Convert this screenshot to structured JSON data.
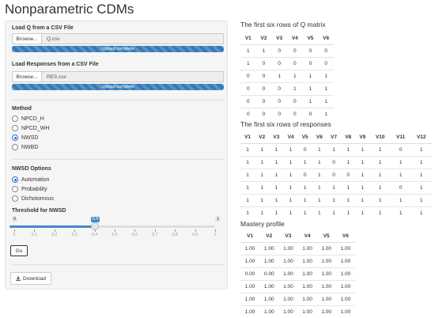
{
  "page": {
    "title": "Nonparametric CDMs"
  },
  "sidebar": {
    "q_upload": {
      "label": "Load Q from a CSV File",
      "browse": "Browse...",
      "filename": "Q.csv",
      "status": "Upload complete",
      "progress": 1.0
    },
    "res_upload": {
      "label": "Load Responses from a CSV File",
      "browse": "Browse...",
      "filename": "RES.csv",
      "status": "Upload complete",
      "progress": 1.0
    },
    "method": {
      "label": "Method",
      "options": [
        "NPCD_H",
        "NPCD_WH",
        "NWSD",
        "NWBD"
      ],
      "selected": "NWSD"
    },
    "nwsd_options": {
      "label": "NWSD Options",
      "options": [
        "Automation",
        "Probability",
        "Dichotomous"
      ],
      "selected": "Automation"
    },
    "threshold": {
      "label": "Threshold for NWSD",
      "min": "0",
      "max": "1",
      "value": "0.4",
      "value_num": 0.4,
      "ticks": [
        "0",
        "0.1",
        "0.2",
        "0.3",
        "0.4",
        "0.5",
        "0.6",
        "0.7",
        "0.8",
        "0.9",
        "1"
      ]
    },
    "go_label": "Go",
    "download_label": "Download"
  },
  "q_matrix": {
    "title": "The first six rows of Q matrix",
    "headers": [
      "V1",
      "V2",
      "V3",
      "V4",
      "V5",
      "V6"
    ],
    "rows": [
      [
        "1",
        "1",
        "0",
        "0",
        "0",
        "0"
      ],
      [
        "1",
        "0",
        "0",
        "0",
        "0",
        "0"
      ],
      [
        "0",
        "0",
        "1",
        "1",
        "1",
        "1"
      ],
      [
        "0",
        "0",
        "0",
        "1",
        "1",
        "1"
      ],
      [
        "0",
        "0",
        "0",
        "0",
        "1",
        "1"
      ],
      [
        "0",
        "0",
        "0",
        "0",
        "0",
        "1"
      ]
    ]
  },
  "responses": {
    "title": "The first six rows of responses",
    "headers": [
      "V1",
      "V2",
      "V3",
      "V4",
      "V5",
      "V6",
      "V7",
      "V8",
      "V9",
      "V10",
      "V11",
      "V12"
    ],
    "rows": [
      [
        "1",
        "1",
        "1",
        "1",
        "0",
        "1",
        "1",
        "1",
        "1",
        "1",
        "0",
        "1"
      ],
      [
        "1",
        "1",
        "1",
        "1",
        "1",
        "1",
        "0",
        "1",
        "1",
        "1",
        "1",
        "1"
      ],
      [
        "1",
        "1",
        "1",
        "1",
        "0",
        "1",
        "0",
        "0",
        "1",
        "1",
        "1",
        "1"
      ],
      [
        "1",
        "1",
        "1",
        "1",
        "1",
        "1",
        "1",
        "1",
        "1",
        "1",
        "0",
        "1"
      ],
      [
        "1",
        "1",
        "1",
        "1",
        "1",
        "1",
        "1",
        "1",
        "1",
        "1",
        "1",
        "1"
      ],
      [
        "1",
        "1",
        "1",
        "1",
        "1",
        "1",
        "1",
        "1",
        "1",
        "1",
        "1",
        "1"
      ]
    ]
  },
  "mastery": {
    "title": "Mastery profile",
    "headers": [
      "V1",
      "V2",
      "V3",
      "V4",
      "V5",
      "V6"
    ],
    "rows": [
      [
        "1.00",
        "1.00",
        "1.00",
        "1.00",
        "1.00",
        "1.00"
      ],
      [
        "1.00",
        "1.00",
        "1.00",
        "1.00",
        "1.00",
        "1.00"
      ],
      [
        "0.00",
        "0.00",
        "1.00",
        "1.00",
        "1.00",
        "1.00"
      ],
      [
        "1.00",
        "1.00",
        "1.00",
        "1.00",
        "1.00",
        "1.00"
      ],
      [
        "1.00",
        "1.00",
        "1.00",
        "1.00",
        "1.00",
        "1.00"
      ],
      [
        "1.00",
        "1.00",
        "1.00",
        "1.00",
        "1.00",
        "1.00"
      ]
    ]
  },
  "colors": {
    "accent": "#337ab7",
    "slider": "#428bca"
  }
}
